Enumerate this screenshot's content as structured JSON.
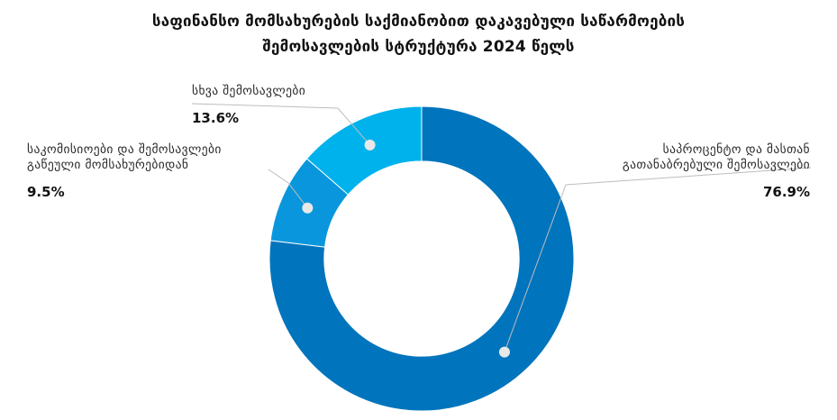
{
  "chart_data": {
    "type": "pie",
    "title_lines": [
      "საფინანსო მომსახურების საქმიანობით დაკავებული საწარმოების",
      "შემოსავლების სტრუქტურა 2024 წელს"
    ],
    "series": [
      {
        "label_lines": [
          "საპროცენტო და მასთან",
          "გათანაბრებული შემოსავლები"
        ],
        "value": 76.9,
        "value_label": "76.9%",
        "color": "#0074BC"
      },
      {
        "label_lines": [
          "საკომისიოები და შემოსავლები",
          "გაწეული მომსახურებიდან"
        ],
        "value": 9.5,
        "value_label": "9.5%",
        "color": "#0A96DC"
      },
      {
        "label_lines": [
          "სხვა შემოსავლები"
        ],
        "value": 13.6,
        "value_label": "13.6%",
        "color": "#00B2EC"
      }
    ],
    "legend": "none",
    "inner_radius_ratio": 0.64
  }
}
